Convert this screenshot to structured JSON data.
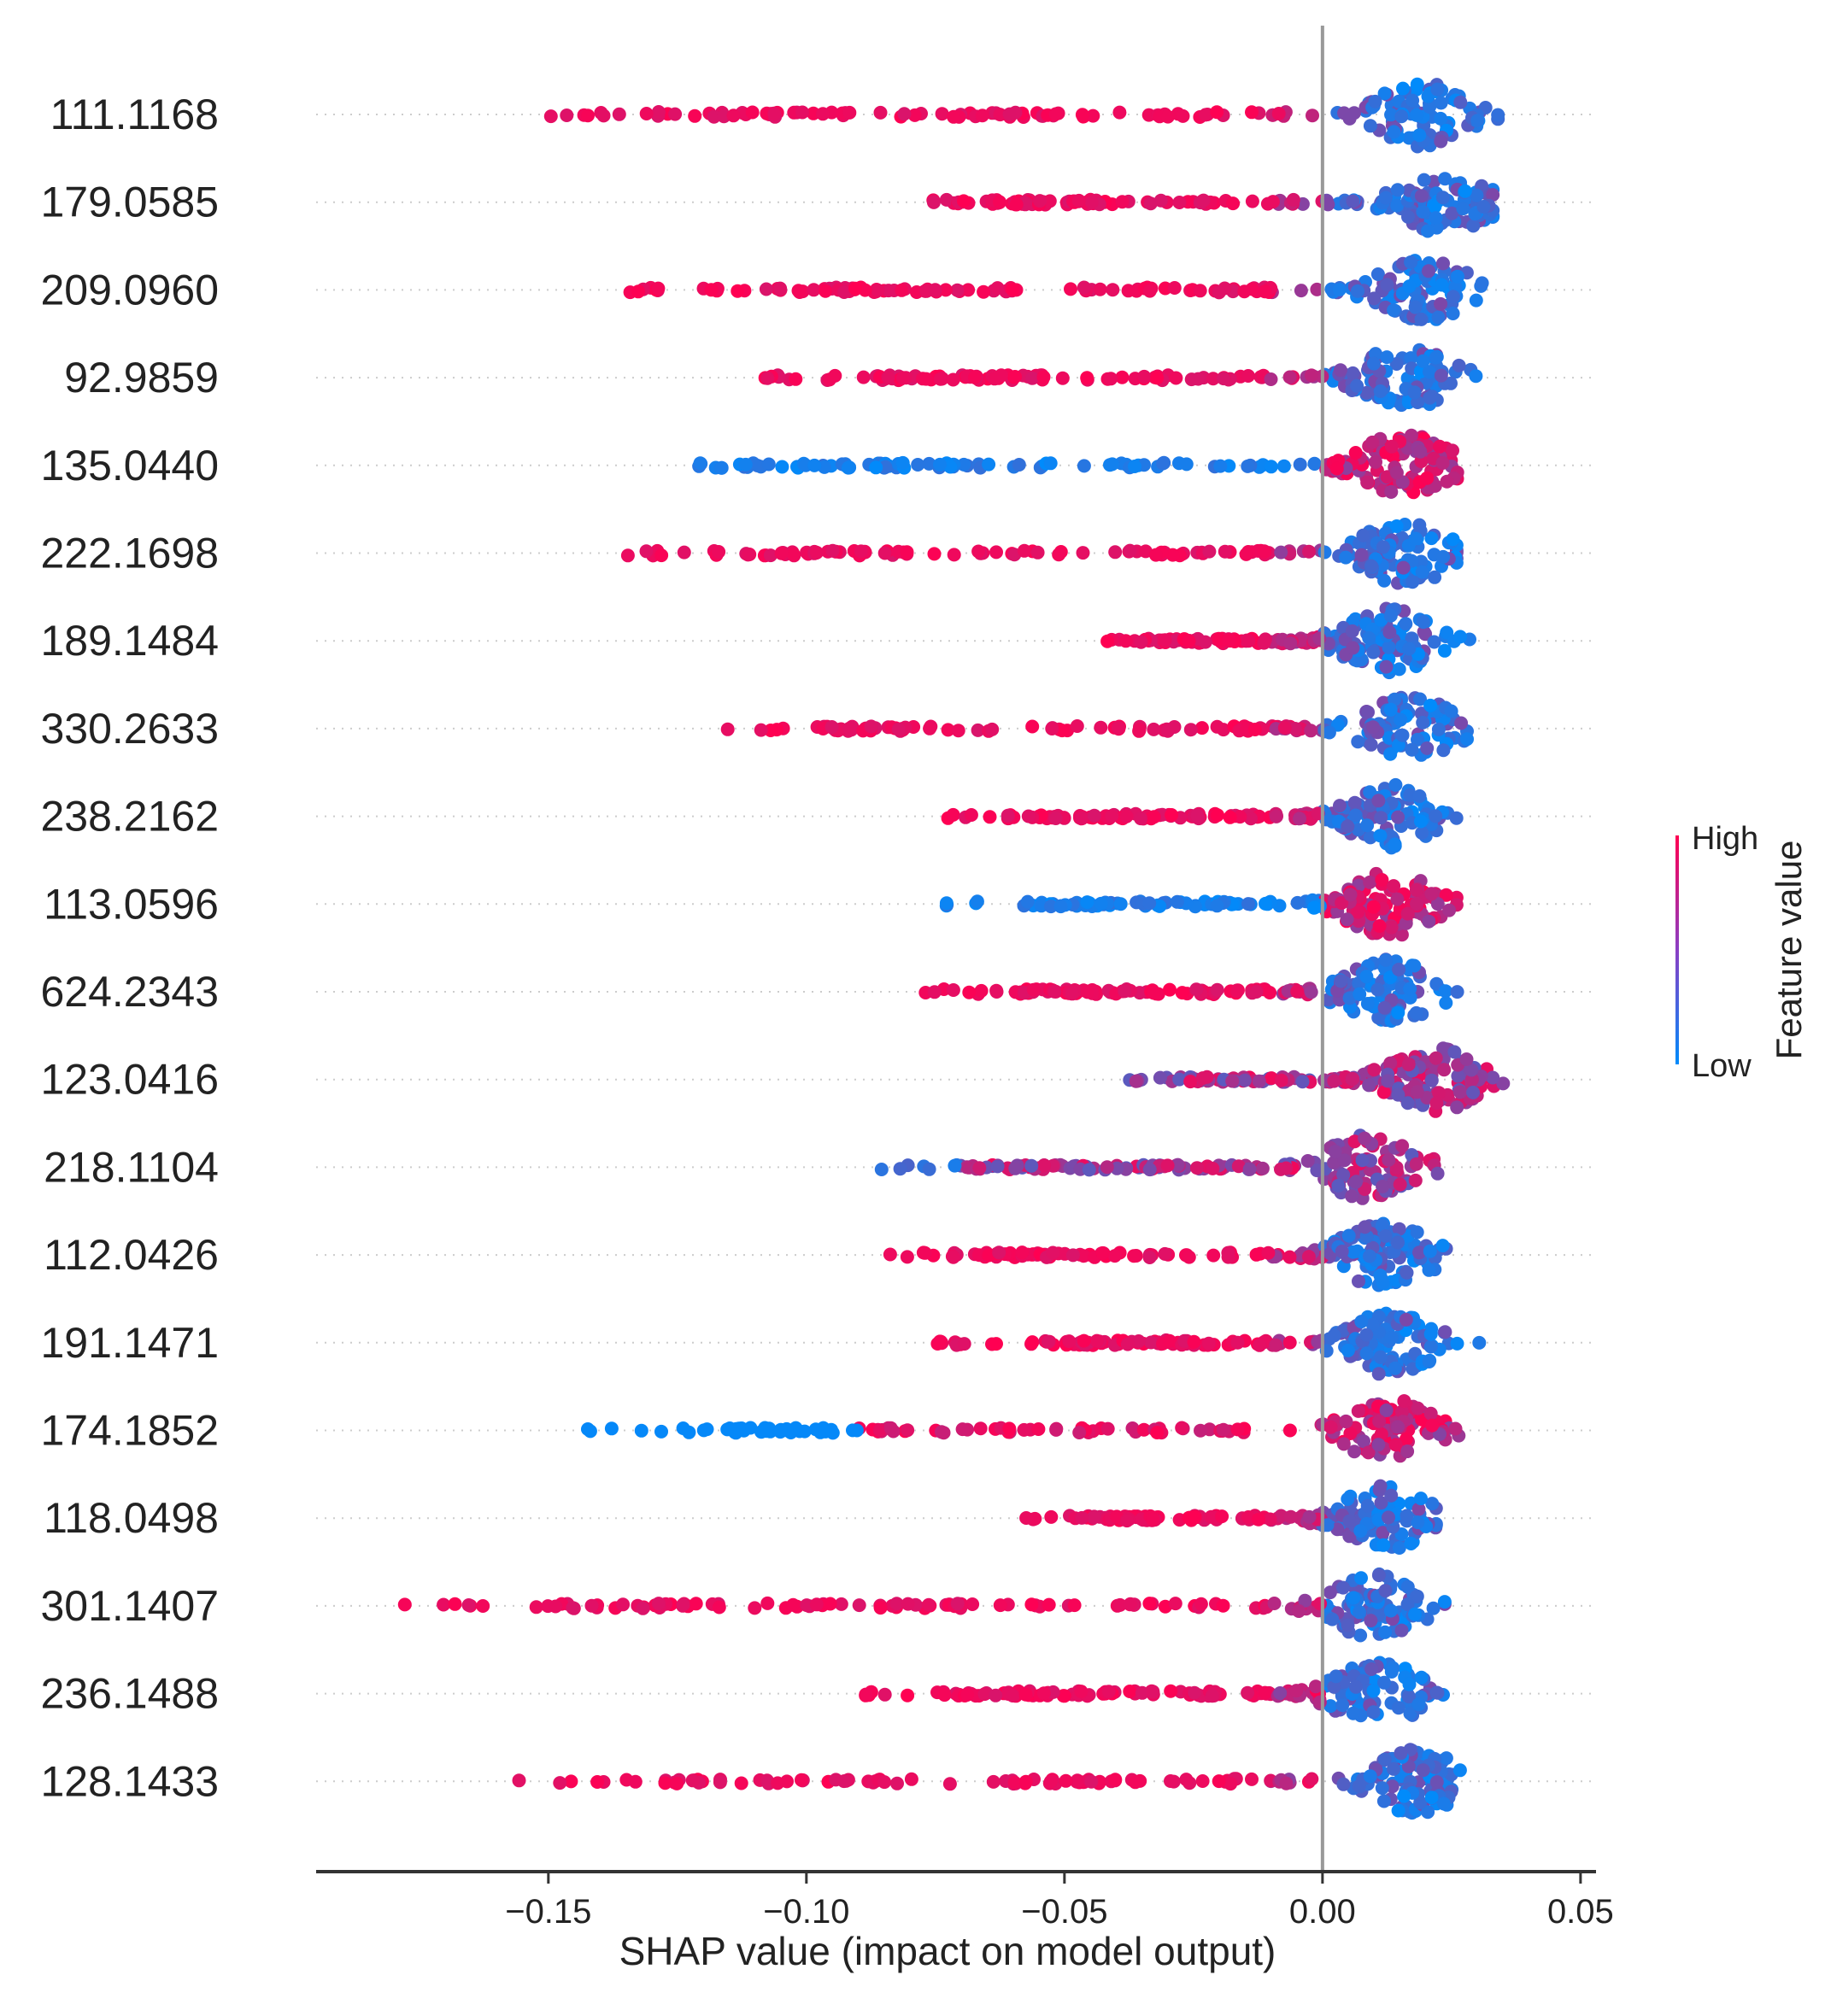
{
  "chart_data": {
    "type": "scatter",
    "subtype": "shap-beeswarm",
    "title": "",
    "xlabel": "SHAP value (impact on model output)",
    "ylabel": "",
    "xlim": [
      -0.195,
      0.053
    ],
    "xticks": [
      -0.15,
      -0.1,
      -0.05,
      0.0,
      0.05
    ],
    "xtick_labels": [
      "−0.15",
      "−0.10",
      "−0.05",
      "0.00",
      "0.05"
    ],
    "zero_line": 0.0,
    "colorbar": {
      "title": "Feature value",
      "high_label": "High",
      "low_label": "Low",
      "high_color": "#ff0052",
      "low_color": "#008bfb"
    },
    "features": [
      {
        "name": "111.1168",
        "min": -0.152,
        "max": 0.034,
        "peak": 0.019,
        "high_side": "left"
      },
      {
        "name": "179.0585",
        "min": -0.076,
        "max": 0.033,
        "peak": 0.024,
        "high_side": "left"
      },
      {
        "name": "209.0960",
        "min": -0.135,
        "max": 0.039,
        "peak": 0.02,
        "high_side": "left"
      },
      {
        "name": "92.9859",
        "min": -0.108,
        "max": 0.031,
        "peak": 0.016,
        "high_side": "left"
      },
      {
        "name": "135.0440",
        "min": -0.123,
        "max": 0.033,
        "peak": 0.016,
        "high_side": "right"
      },
      {
        "name": "222.1698",
        "min": -0.136,
        "max": 0.026,
        "peak": 0.016,
        "high_side": "left"
      },
      {
        "name": "189.1484",
        "min": -0.046,
        "max": 0.03,
        "peak": 0.013,
        "high_side": "left"
      },
      {
        "name": "330.2633",
        "min": -0.118,
        "max": 0.028,
        "peak": 0.017,
        "high_side": "left"
      },
      {
        "name": "238.2162",
        "min": -0.073,
        "max": 0.03,
        "peak": 0.014,
        "high_side": "left"
      },
      {
        "name": "113.0596",
        "min": -0.073,
        "max": 0.026,
        "peak": 0.013,
        "high_side": "right"
      },
      {
        "name": "624.2343",
        "min": -0.078,
        "max": 0.038,
        "peak": 0.013,
        "high_side": "left"
      },
      {
        "name": "123.0416",
        "min": -0.038,
        "max": 0.035,
        "peak": 0.022,
        "high_side": "mixed"
      },
      {
        "name": "218.1104",
        "min": -0.087,
        "max": 0.024,
        "peak": 0.009,
        "high_side": "mixed"
      },
      {
        "name": "112.0426",
        "min": -0.087,
        "max": 0.029,
        "peak": 0.012,
        "high_side": "left"
      },
      {
        "name": "191.1471",
        "min": -0.075,
        "max": 0.041,
        "peak": 0.013,
        "high_side": "left"
      },
      {
        "name": "174.1852",
        "min": -0.143,
        "max": 0.028,
        "peak": 0.013,
        "high_side": "right-mixed"
      },
      {
        "name": "118.0498",
        "min": -0.058,
        "max": 0.022,
        "peak": 0.012,
        "high_side": "left"
      },
      {
        "name": "301.1407",
        "min": -0.185,
        "max": 0.03,
        "peak": 0.01,
        "high_side": "left"
      },
      {
        "name": "236.1488",
        "min": -0.089,
        "max": 0.024,
        "peak": 0.011,
        "high_side": "left"
      },
      {
        "name": "128.1433",
        "min": -0.156,
        "max": 0.031,
        "peak": 0.018,
        "high_side": "left"
      }
    ]
  }
}
